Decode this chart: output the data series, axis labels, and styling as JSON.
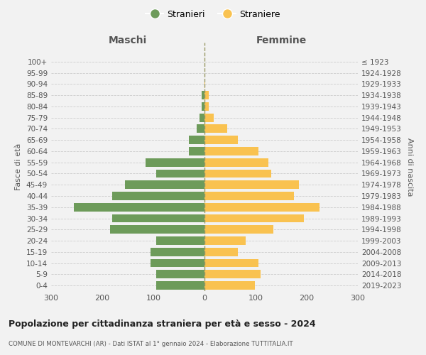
{
  "age_groups": [
    "0-4",
    "5-9",
    "10-14",
    "15-19",
    "20-24",
    "25-29",
    "30-34",
    "35-39",
    "40-44",
    "45-49",
    "50-54",
    "55-59",
    "60-64",
    "65-69",
    "70-74",
    "75-79",
    "80-84",
    "85-89",
    "90-94",
    "95-99",
    "100+"
  ],
  "birth_years": [
    "2019-2023",
    "2014-2018",
    "2009-2013",
    "2004-2008",
    "1999-2003",
    "1994-1998",
    "1989-1993",
    "1984-1988",
    "1979-1983",
    "1974-1978",
    "1969-1973",
    "1964-1968",
    "1959-1963",
    "1954-1958",
    "1949-1953",
    "1944-1948",
    "1939-1943",
    "1934-1938",
    "1929-1933",
    "1924-1928",
    "≤ 1923"
  ],
  "males": [
    95,
    95,
    105,
    105,
    95,
    185,
    180,
    255,
    180,
    155,
    95,
    115,
    30,
    30,
    15,
    10,
    5,
    5,
    0,
    0,
    0
  ],
  "females": [
    98,
    110,
    105,
    65,
    80,
    135,
    195,
    225,
    175,
    185,
    130,
    125,
    105,
    65,
    45,
    18,
    8,
    8,
    2,
    0,
    0
  ],
  "male_color": "#6d9b5a",
  "female_color": "#f9c250",
  "background_color": "#f2f2f2",
  "title": "Popolazione per cittadinanza straniera per età e sesso - 2024",
  "subtitle": "COMUNE DI MONTEVARCHI (AR) - Dati ISTAT al 1° gennaio 2024 - Elaborazione TUTTITALIA.IT",
  "xlabel_left": "Maschi",
  "xlabel_right": "Femmine",
  "ylabel_left": "Fasce di età",
  "ylabel_right": "Anni di nascita",
  "legend_male": "Stranieri",
  "legend_female": "Straniere",
  "xlim": 300,
  "grid_color": "#cccccc",
  "dashed_color": "#999966"
}
